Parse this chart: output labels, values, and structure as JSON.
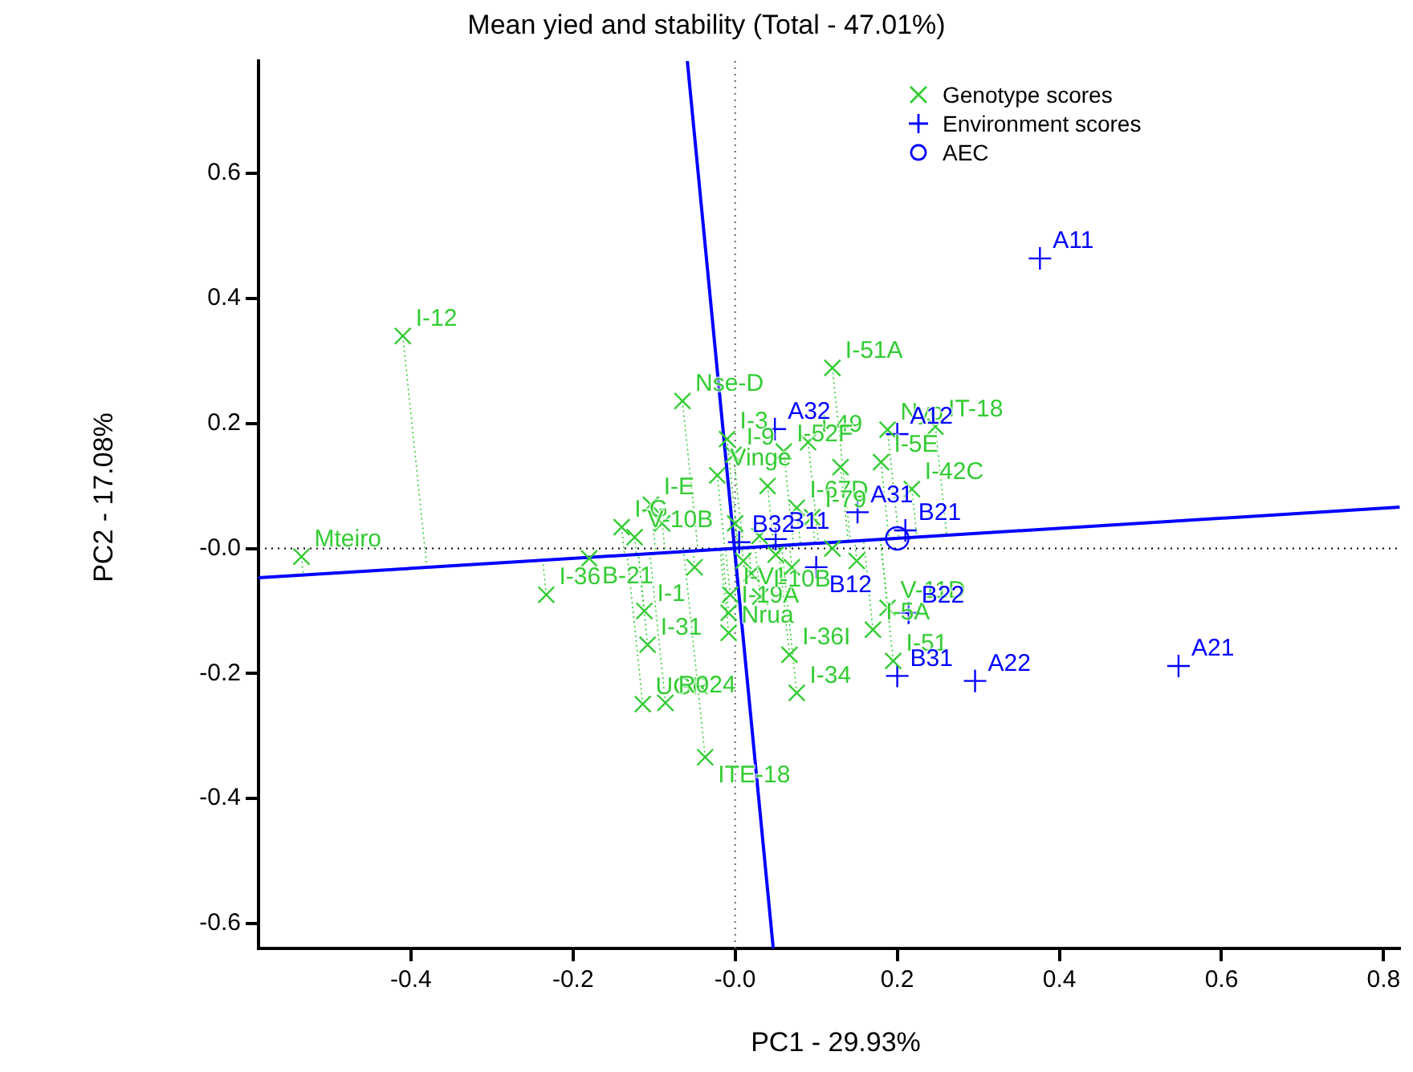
{
  "chart_data": {
    "type": "scatter",
    "title": "Mean yied and stability (Total - 47.01%)",
    "xlabel": "PC1 - 29.93%",
    "ylabel": "PC2 - 17.08%",
    "xlim": [
      -0.588,
      0.82
    ],
    "ylim": [
      -0.64,
      0.78
    ],
    "xticks": [
      -0.4,
      -0.2,
      {
        "value": 0,
        "label": "-0.0"
      },
      0.2,
      0.4,
      0.6,
      0.8
    ],
    "yticks": [
      -0.6,
      -0.4,
      -0.2,
      {
        "value": 0,
        "label": "-0.0"
      },
      0.2,
      0.4,
      0.6
    ],
    "grid": false,
    "legend": "top right",
    "ref_lines": [
      {
        "axis": "x",
        "value": 0,
        "color": "#666666",
        "line_style": "dotted"
      },
      {
        "axis": "y",
        "value": 0,
        "color": "#000000",
        "line_style": "dotted"
      }
    ],
    "series": [
      {
        "name": "Genotype scores",
        "marker": "cross",
        "color": "#33cc33",
        "x": [
          -0.41,
          -0.535,
          -0.233,
          -0.18,
          -0.14,
          -0.104,
          -0.124,
          -0.112,
          -0.108,
          -0.114,
          -0.086,
          -0.037,
          -0.065,
          0.12,
          -0.01,
          -0.002,
          -0.022,
          0.09,
          0.06,
          0.076,
          0.095,
          0.188,
          0.247,
          0.18,
          0.218,
          0.188,
          0.17,
          0.195,
          0.076,
          0.067,
          -0.008,
          -0.008,
          -0.006,
          0.031,
          0.01,
          0.03,
          0.05,
          0.02,
          0.07,
          0.12,
          0.15,
          -0.09,
          0.0,
          0.04,
          0.13,
          -0.05
        ],
        "values": [
          0.34,
          -0.013,
          -0.074,
          -0.016,
          0.034,
          0.07,
          0.018,
          -0.1,
          -0.154,
          -0.249,
          -0.247,
          -0.334,
          0.236,
          0.289,
          0.175,
          0.15,
          0.117,
          0.17,
          0.155,
          0.065,
          0.05,
          0.19,
          0.195,
          0.138,
          0.095,
          -0.095,
          -0.13,
          -0.18,
          -0.231,
          -0.17,
          -0.135,
          -0.103,
          -0.074,
          -0.077,
          -0.02,
          0.02,
          -0.01,
          -0.04,
          -0.03,
          0.0,
          -0.02,
          0.04,
          0.04,
          0.1,
          0.13,
          -0.03
        ],
        "value_labels": [
          "I-12",
          "Mteiro",
          "I-36",
          "B-21",
          "I-G",
          "I-E",
          "V-10B",
          "I-1",
          "I-31",
          "UGR",
          "R024",
          "ITE-18",
          "Nse-D",
          "I-51A",
          "I-3",
          "I-9",
          "Vinge",
          "I-49",
          "I-52F",
          "I-67D",
          "I-79",
          "Nyo",
          "IT-18",
          "I-5E",
          "I-42C",
          "V-11D",
          "I-5A",
          "I-51",
          "I-34",
          "I-36I",
          "Nrua",
          "I-19A",
          "I-V1",
          "I-10B",
          null,
          null,
          null,
          null,
          null,
          null,
          null,
          null,
          null,
          null,
          null,
          null
        ]
      },
      {
        "name": "Environment scores",
        "marker": "plus",
        "color": "#0000ff",
        "x": [
          0.376,
          0.547,
          0.296,
          0.2,
          0.214,
          0.21,
          0.151,
          0.2,
          0.049,
          0.05,
          0.1,
          0.005
        ],
        "values": [
          0.464,
          -0.188,
          -0.212,
          -0.204,
          -0.103,
          0.029,
          0.058,
          0.183,
          0.191,
          0.015,
          -0.03,
          0.01
        ],
        "value_labels": [
          "A11",
          "A21",
          "A22",
          "B31",
          "B22",
          "B21",
          "A31",
          "A12",
          "A32",
          "B11",
          "B12",
          "B32"
        ]
      },
      {
        "name": "AEC",
        "marker": "circle",
        "color": "#0000ff",
        "x": [
          0.2
        ],
        "values": [
          0.016
        ]
      },
      {
        "type": "line",
        "color": "#0000ff",
        "x": [
          -0.588,
          0.82
        ],
        "values": [
          -0.047,
          0.066
        ]
      },
      {
        "type": "line",
        "color": "#0000ff",
        "x": [
          -0.059,
          0.047
        ],
        "values": [
          0.78,
          -0.64
        ]
      }
    ]
  }
}
